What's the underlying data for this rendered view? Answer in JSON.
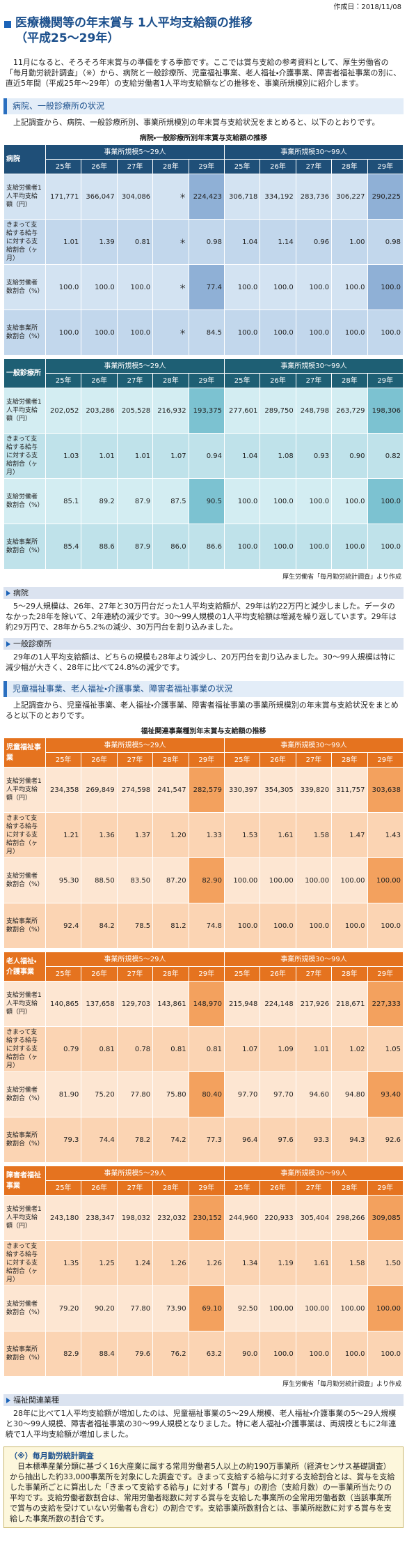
{
  "header": {
    "date": "作成日：2018/11/08",
    "title": [
      "医療機関等の年末賞与 1人平均支給額の推移",
      "（平成25～29年）"
    ],
    "intro": "11月になると、そろそろ年末賞与の準備をする季節です。ここでは賞与支給の参考資料として、厚生労働省の「毎月勤労統計調査」（※）から、病院と一般診療所、児童福祉事業、老人福祉・介護事業、障害者福祉事業の別に、直近5年間（平成25年～29年）の支給労働者1人平均支給額などの推移を、事業所規模別に紹介します。"
  },
  "common": {
    "size_groups": [
      "事業所規模5～29人",
      "事業所規模30～99人"
    ],
    "years": [
      "25年",
      "26年",
      "27年",
      "28年",
      "29年"
    ],
    "row_labels": [
      "支給労働者1人平均支給額（円）",
      "きまって支給する給与に対する支給割合（ヶ月）",
      "支給労働者数割合（%）",
      "支給事業所数割合（%）"
    ],
    "source": "厚生労働省「毎月勤労統計調査」より作成"
  },
  "sections": [
    {
      "heading": "病院、一般診療所の状況",
      "lead": "上記調査から、病院、一般診療所別、事業所規模別の年末賞与支給状況をまとめると、以下のとおりです。",
      "caption": "病院・一般診療所別年末賞与支給額の推移",
      "tables": [
        {
          "name": "病院",
          "rows": [
            [
              "171,771",
              "366,047",
              "304,086",
              "＊",
              "224,423",
              "306,718",
              "334,192",
              "283,736",
              "306,227",
              "290,225"
            ],
            [
              "1.01",
              "1.39",
              "0.81",
              "＊",
              "0.98",
              "1.04",
              "1.14",
              "0.96",
              "1.00",
              "0.98"
            ],
            [
              "100.0",
              "100.0",
              "100.0",
              "＊",
              "77.4",
              "100.0",
              "100.0",
              "100.0",
              "100.0",
              "100.0"
            ],
            [
              "100.0",
              "100.0",
              "100.0",
              "＊",
              "84.5",
              "100.0",
              "100.0",
              "100.0",
              "100.0",
              "100.0"
            ]
          ]
        },
        {
          "name": "一般診療所",
          "rows": [
            [
              "202,052",
              "203,286",
              "205,528",
              "216,932",
              "193,375",
              "277,601",
              "289,750",
              "248,798",
              "263,729",
              "198,306"
            ],
            [
              "1.03",
              "1.01",
              "1.01",
              "1.07",
              "0.94",
              "1.04",
              "1.08",
              "0.93",
              "0.90",
              "0.82"
            ],
            [
              "85.1",
              "89.2",
              "87.9",
              "87.5",
              "90.5",
              "100.0",
              "100.0",
              "100.0",
              "100.0",
              "100.0"
            ],
            [
              "85.4",
              "88.6",
              "87.9",
              "86.0",
              "86.6",
              "100.0",
              "100.0",
              "100.0",
              "100.0",
              "100.0"
            ]
          ]
        }
      ],
      "notes": [
        {
          "label": "病院",
          "text": "5～29人規模は、26年、27年と30万円台だった1人平均支給額が、29年は約22万円と減少しました。データのなかった28年を除いて、2年連続の減少です。30～99人規模の1人平均支給額は増減を繰り返しています。29年は約29万円で、28年から5.2%の減少、30万円台を割り込みました。"
        },
        {
          "label": "一般診療所",
          "text": "29年の1人平均支給額は、どちらの規模も28年より減少し、20万円台を割り込みました。30～99人規模は特に減少幅が大きく、28年に比べて24.8%の減少です。"
        }
      ]
    },
    {
      "heading": "児童福祉事業、老人福祉・介護事業、障害者福祉事業の状況",
      "lead": "上記調査から、児童福祉事業、老人福祉・介護事業、障害者福祉事業の事業所規模別の年末賞与支給状況をまとめると以下のとおりです。",
      "caption": "福祉関連事業種別年末賞与支給額の推移",
      "tables": [
        {
          "name": "児童福祉事業",
          "rows": [
            [
              "234,358",
              "269,849",
              "274,598",
              "241,547",
              "282,579",
              "330,397",
              "354,305",
              "339,820",
              "311,757",
              "303,638"
            ],
            [
              "1.21",
              "1.36",
              "1.37",
              "1.20",
              "1.33",
              "1.53",
              "1.61",
              "1.58",
              "1.47",
              "1.43"
            ],
            [
              "95.30",
              "88.50",
              "83.50",
              "87.20",
              "82.90",
              "100.00",
              "100.00",
              "100.00",
              "100.00",
              "100.00"
            ],
            [
              "92.4",
              "84.2",
              "78.5",
              "81.2",
              "74.8",
              "100.0",
              "100.0",
              "100.0",
              "100.0",
              "100.0"
            ]
          ]
        },
        {
          "name": "老人福祉・介護事業",
          "rows": [
            [
              "140,865",
              "137,658",
              "129,703",
              "143,861",
              "148,970",
              "215,948",
              "224,148",
              "217,926",
              "218,671",
              "227,333"
            ],
            [
              "0.79",
              "0.81",
              "0.78",
              "0.81",
              "0.81",
              "1.07",
              "1.09",
              "1.01",
              "1.02",
              "1.05"
            ],
            [
              "81.90",
              "75.20",
              "77.80",
              "75.80",
              "80.40",
              "97.70",
              "97.70",
              "94.60",
              "94.80",
              "93.40"
            ],
            [
              "79.3",
              "74.4",
              "78.2",
              "74.2",
              "77.3",
              "96.4",
              "97.6",
              "93.3",
              "94.3",
              "92.6"
            ]
          ]
        },
        {
          "name": "障害者福祉事業",
          "rows": [
            [
              "243,180",
              "238,347",
              "198,032",
              "232,032",
              "230,152",
              "244,960",
              "220,933",
              "305,404",
              "298,266",
              "309,085"
            ],
            [
              "1.35",
              "1.25",
              "1.24",
              "1.26",
              "1.26",
              "1.34",
              "1.19",
              "1.61",
              "1.58",
              "1.50"
            ],
            [
              "79.20",
              "90.20",
              "77.80",
              "73.90",
              "69.10",
              "92.50",
              "100.00",
              "100.00",
              "100.00",
              "100.00"
            ],
            [
              "82.9",
              "88.4",
              "79.6",
              "76.2",
              "63.2",
              "90.0",
              "100.0",
              "100.0",
              "100.0",
              "100.0"
            ]
          ]
        }
      ],
      "notes": [
        {
          "label": "福祉関連業種",
          "text": "28年に比べて1人平均支給額が増加したのは、児童福祉事業の5～29人規模、老人福祉・介護事業の5～29人規模と30～99人規模、障害者福祉事業の30～99人規模となりました。特に老人福祉・介護事業は、両規模ともに2年連続で1人平均支給額が増加しました。"
        }
      ]
    }
  ],
  "footnote": {
    "title": "（※）毎月勤労統計調査",
    "text": "日本標準産業分類に基づく16大産業に属する常用労働者5人以上の約190万事業所（経済センサス基礎調査）から抽出した約33,000事業所を対象にした調査です。きまって支給する給与に対する支給割合とは、賞与を支給した事業所ごとに算出した「きまって支給する給与」に対する「賞与」の割合（支給月数）の一事業所当たりの平均です。支給労働者数割合は、常用労働者総数に対する賞与を支給した事業所の全常用労働者数（当該事業所で賞与の支給を受けていない労働者も含む）の割合です。支給事業所数割合とは、事業所総数に対する賞与を支給した事業所数の割合です。"
  }
}
